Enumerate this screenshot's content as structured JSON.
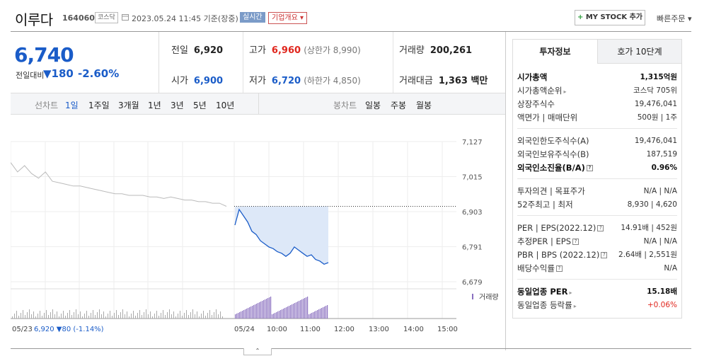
{
  "header": {
    "name": "이루다",
    "code": "164060",
    "market": "코스닥",
    "timestamp": "2023.05.24 11:45 기준(장중)",
    "realtime": "실시간",
    "company_info": "기업개요 ▾",
    "mystock": "MY STOCK 추가",
    "mystock_plus": "+",
    "quick_order": "빠른주문 ▾"
  },
  "price": {
    "current": "6,740",
    "prev_label": "전일대비",
    "diff": "▼180",
    "rate": "-2.60%"
  },
  "summary": {
    "prev_close_label": "전일",
    "prev_close": "6,920",
    "high_label": "고가",
    "high": "6,960",
    "upper_limit": "(상한가 8,990)",
    "volume_label": "거래량",
    "volume": "200,261",
    "open_label": "시가",
    "open": "6,900",
    "low_label": "저가",
    "low": "6,720",
    "lower_limit": "(하한가 4,850)",
    "amount_label": "거래대금",
    "amount": "1,363 백만"
  },
  "toolbar": {
    "line_label": "선차트",
    "periods": [
      "1일",
      "1주일",
      "3개월",
      "1년",
      "3년",
      "5년",
      "10년"
    ],
    "candle_label": "봉차트",
    "candles": [
      "일봉",
      "주봉",
      "월봉"
    ]
  },
  "chart_data": {
    "type": "line",
    "yticks": [
      "7,127",
      "7,015",
      "6,903",
      "6,791",
      "6,679"
    ],
    "ylim": [
      6679,
      7127
    ],
    "xticks": [
      "05/24",
      "10:00",
      "11:00",
      "12:00",
      "13:00",
      "14:00",
      "15:00"
    ],
    "prev_close": 6920,
    "prev_day_label": "05/23",
    "prev_day_info": "6,920 ▼80 (-1.14%)",
    "volume_label": "거래량",
    "series": [
      {
        "values": [
          7060,
          7030,
          7050,
          7025,
          7010,
          7030,
          7000,
          6995,
          6990,
          6985,
          6985,
          6980,
          6975,
          6970,
          6965,
          6960,
          6960,
          6955,
          6955,
          6955,
          6950,
          6950,
          6945,
          6950,
          6945,
          6940,
          6940,
          6935,
          6935,
          6930,
          6930,
          6920
        ]
      },
      {
        "values": [
          6860,
          6910,
          6890,
          6870,
          6840,
          6830,
          6810,
          6800,
          6790,
          6785,
          6775,
          6770,
          6760,
          6770,
          6790,
          6780,
          6770,
          6760,
          6765,
          6750,
          6745,
          6735,
          6740
        ]
      }
    ]
  },
  "panel": {
    "tab_active": "투자정보",
    "tab_inactive": "호가 10단계",
    "rows": [
      {
        "label": "시가총액",
        "value": "1,315억원",
        "bold": true
      },
      {
        "label": "시가총액순위",
        "value": "코스닥 705위",
        "arrow": true
      },
      {
        "label": "상장주식수",
        "value": "19,476,041"
      },
      {
        "label": "액면가 | 매매단위",
        "value": "500원 | 1주"
      },
      {
        "label": "외국인한도주식수(A)",
        "value": "19,476,041"
      },
      {
        "label": "외국인보유주식수(B)",
        "value": "187,519"
      },
      {
        "label": "외국인소진율(B/A)",
        "value": "0.96%",
        "bold": true,
        "q": true
      },
      {
        "label": "투자의견 | 목표주가",
        "value": "N/A | N/A"
      },
      {
        "label": "52주최고 | 최저",
        "value": "8,930 | 4,620"
      },
      {
        "label": "PER | EPS(2022.12)",
        "value": "14.91배 | 452원",
        "q": true
      },
      {
        "label": "추정PER | EPS",
        "value": "N/A | N/A",
        "q": true
      },
      {
        "label": "PBR | BPS (2022.12)",
        "value": "2.64배 | 2,551원",
        "q": true
      },
      {
        "label": "배당수익률",
        "value": "N/A",
        "q": true
      },
      {
        "label": "동일업종 PER",
        "value": "15.18배",
        "bold": true,
        "arrow": true
      },
      {
        "label": "동일업종 등락률",
        "value": "+0.06%",
        "arrow": true,
        "red": true
      }
    ]
  }
}
